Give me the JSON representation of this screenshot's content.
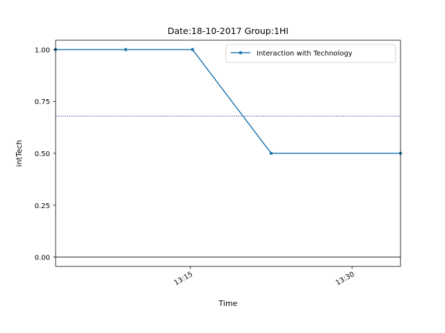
{
  "chart_data": {
    "type": "line",
    "title": "Date:18-10-2017  Group:1HI",
    "xlabel": "Time",
    "ylabel": "intTech",
    "x_tick_labels": [
      "13:15",
      "13:30"
    ],
    "x_tick_values": [
      "13:15",
      "13:30"
    ],
    "xlim": [
      "13:02.5",
      "13:34.5"
    ],
    "y_tick_labels": [
      "0.00",
      "0.25",
      "0.50",
      "0.75",
      "1.00"
    ],
    "y_tick_values": [
      0,
      0.25,
      0.5,
      0.75,
      1.0
    ],
    "ylim": [
      -0.045,
      1.045
    ],
    "grid": false,
    "legend_position": "top-right",
    "series": [
      {
        "name": "Interaction with Technology",
        "color": "#1f77b4",
        "marker": "point",
        "x": [
          "13:02.5",
          "13:09",
          "13:15.2",
          "13:22.5",
          "13:34.5"
        ],
        "y": [
          1.0,
          1.0,
          1.0,
          0.5,
          0.5
        ]
      }
    ],
    "reference_lines": [
      {
        "y": 0.68,
        "style": "dashed",
        "color": "#1a1a6e"
      },
      {
        "y": 0.0,
        "style": "solid",
        "color": "#000000"
      }
    ]
  }
}
